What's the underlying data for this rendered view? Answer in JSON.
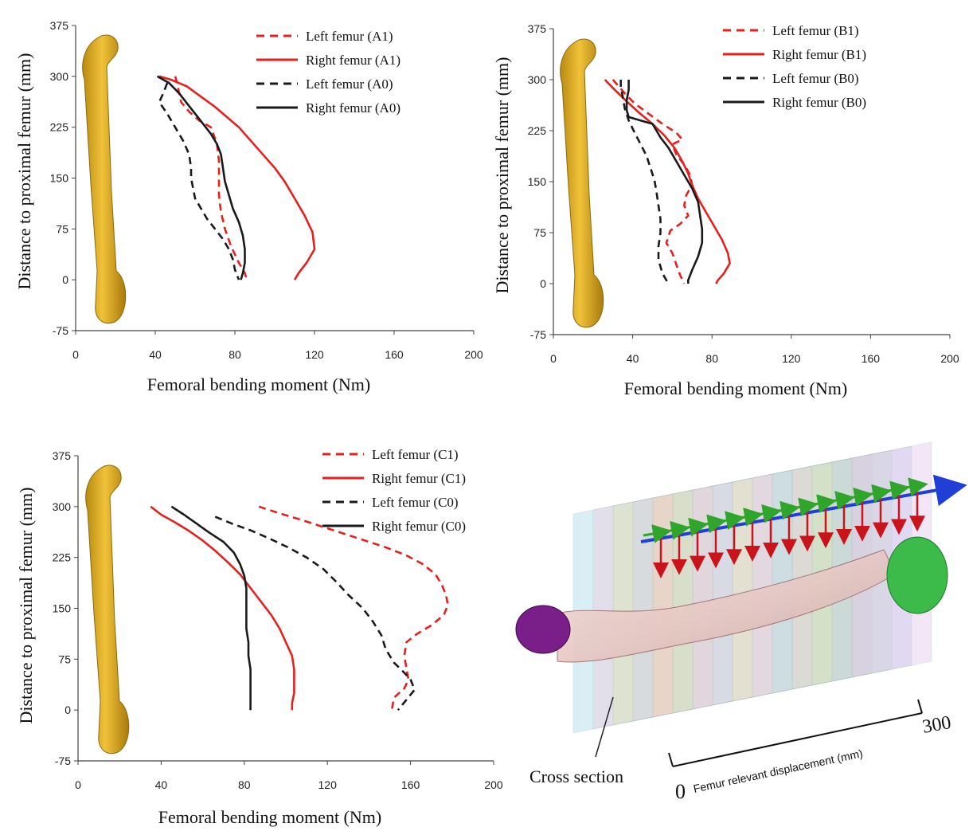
{
  "chart_data": [
    {
      "type": "line",
      "xlabel": "Femoral bending moment (Nm)",
      "ylabel": "Distance to proximal femur (mm)",
      "xlim": [
        0,
        200
      ],
      "ylim": [
        -75,
        375
      ],
      "xticks": [
        "0",
        "40",
        "80",
        "120",
        "160",
        "200"
      ],
      "yticks": [
        "-75",
        "0",
        "75",
        "150",
        "225",
        "300",
        "375"
      ],
      "legend_position": "top-right",
      "series": [
        {
          "name": "Left femur (A1)",
          "color": "#e8201c",
          "dash": true,
          "points": [
            [
              50,
              300
            ],
            [
              51,
              290
            ],
            [
              52,
              275
            ],
            [
              53,
              262
            ],
            [
              57,
              248
            ],
            [
              62,
              235
            ],
            [
              68,
              225
            ],
            [
              71,
              200
            ],
            [
              72,
              175
            ],
            [
              72,
              150
            ],
            [
              72,
              125
            ],
            [
              73,
              100
            ],
            [
              75,
              75
            ],
            [
              78,
              50
            ],
            [
              82,
              25
            ],
            [
              85,
              10
            ],
            [
              86,
              0
            ]
          ]
        },
        {
          "name": "Right femur (A1)",
          "color": "#e8201c",
          "dash": false,
          "points": [
            [
              42,
              300
            ],
            [
              48,
              295
            ],
            [
              56,
              285
            ],
            [
              63,
              270
            ],
            [
              70,
              255
            ],
            [
              76,
              240
            ],
            [
              82,
              225
            ],
            [
              88,
              205
            ],
            [
              94,
              185
            ],
            [
              100,
              165
            ],
            [
              105,
              145
            ],
            [
              110,
              120
            ],
            [
              115,
              95
            ],
            [
              119,
              70
            ],
            [
              120,
              45
            ],
            [
              116,
              25
            ],
            [
              112,
              10
            ],
            [
              110,
              0
            ]
          ]
        },
        {
          "name": "Left femur (A0)",
          "color": "#1a1a1a",
          "dash": true,
          "points": [
            [
              46,
              290
            ],
            [
              44,
              275
            ],
            [
              42,
              262
            ],
            [
              46,
              245
            ],
            [
              50,
              225
            ],
            [
              54,
              205
            ],
            [
              57,
              185
            ],
            [
              58,
              165
            ],
            [
              58,
              150
            ],
            [
              59,
              135
            ],
            [
              60,
              120
            ],
            [
              63,
              105
            ],
            [
              66,
              90
            ],
            [
              70,
              75
            ],
            [
              74,
              60
            ],
            [
              77,
              45
            ],
            [
              79,
              30
            ],
            [
              80,
              15
            ],
            [
              82,
              0
            ]
          ]
        },
        {
          "name": "Right femur (A0)",
          "color": "#1a1a1a",
          "dash": false,
          "points": [
            [
              41,
              300
            ],
            [
              47,
              290
            ],
            [
              52,
              275
            ],
            [
              56,
              260
            ],
            [
              60,
              245
            ],
            [
              64,
              230
            ],
            [
              68,
              215
            ],
            [
              71,
              200
            ],
            [
              73,
              185
            ],
            [
              74,
              165
            ],
            [
              75,
              145
            ],
            [
              77,
              125
            ],
            [
              79,
              105
            ],
            [
              82,
              85
            ],
            [
              84,
              65
            ],
            [
              85,
              45
            ],
            [
              85,
              25
            ],
            [
              84,
              10
            ],
            [
              83,
              0
            ]
          ]
        }
      ]
    },
    {
      "type": "line",
      "xlabel": "Femoral bending moment (Nm)",
      "ylabel": "Distance to proximal femur (mm)",
      "xlim": [
        0,
        200
      ],
      "ylim": [
        -75,
        375
      ],
      "xticks": [
        "0",
        "40",
        "80",
        "120",
        "160",
        "200"
      ],
      "yticks": [
        "-75",
        "0",
        "75",
        "150",
        "225",
        "300",
        "375"
      ],
      "legend_position": "top-right",
      "series": [
        {
          "name": "Left femur (B1)",
          "color": "#e8201c",
          "dash": true,
          "points": [
            [
              30,
              300
            ],
            [
              33,
              290
            ],
            [
              36,
              280
            ],
            [
              41,
              265
            ],
            [
              48,
              250
            ],
            [
              55,
              235
            ],
            [
              62,
              222
            ],
            [
              65,
              212
            ],
            [
              60,
              205
            ],
            [
              62,
              190
            ],
            [
              66,
              175
            ],
            [
              69,
              160
            ],
            [
              70,
              145
            ],
            [
              67,
              130
            ],
            [
              66,
              115
            ],
            [
              68,
              100
            ],
            [
              64,
              88
            ],
            [
              59,
              78
            ],
            [
              57,
              60
            ],
            [
              60,
              45
            ],
            [
              62,
              28
            ],
            [
              64,
              12
            ],
            [
              66,
              0
            ]
          ]
        },
        {
          "name": "Right femur (B1)",
          "color": "#e8201c",
          "dash": false,
          "points": [
            [
              26,
              300
            ],
            [
              31,
              285
            ],
            [
              37,
              268
            ],
            [
              43,
              252
            ],
            [
              50,
              235
            ],
            [
              56,
              218
            ],
            [
              61,
              200
            ],
            [
              65,
              180
            ],
            [
              68,
              162
            ],
            [
              70,
              145
            ],
            [
              73,
              125
            ],
            [
              77,
              105
            ],
            [
              81,
              85
            ],
            [
              85,
              65
            ],
            [
              88,
              45
            ],
            [
              89,
              30
            ],
            [
              86,
              15
            ],
            [
              83,
              5
            ],
            [
              82,
              0
            ]
          ]
        },
        {
          "name": "Left femur (B0)",
          "color": "#1a1a1a",
          "dash": true,
          "points": [
            [
              34,
              300
            ],
            [
              34,
              290
            ],
            [
              35,
              275
            ],
            [
              36,
              258
            ],
            [
              38,
              240
            ],
            [
              41,
              222
            ],
            [
              44,
              205
            ],
            [
              47,
              188
            ],
            [
              49,
              170
            ],
            [
              51,
              152
            ],
            [
              52,
              135
            ],
            [
              53,
              115
            ],
            [
              54,
              95
            ],
            [
              54,
              75
            ],
            [
              53,
              55
            ],
            [
              53,
              35
            ],
            [
              55,
              15
            ],
            [
              58,
              0
            ]
          ]
        },
        {
          "name": "Right femur (B0)",
          "color": "#1a1a1a",
          "dash": false,
          "points": [
            [
              38,
              300
            ],
            [
              38,
              285
            ],
            [
              37,
              270
            ],
            [
              37,
              255
            ],
            [
              38,
              245
            ],
            [
              44,
              240
            ],
            [
              50,
              235
            ],
            [
              52,
              225
            ],
            [
              54,
              215
            ],
            [
              58,
              200
            ],
            [
              62,
              180
            ],
            [
              66,
              160
            ],
            [
              70,
              140
            ],
            [
              73,
              120
            ],
            [
              74,
              100
            ],
            [
              75,
              80
            ],
            [
              75,
              60
            ],
            [
              73,
              40
            ],
            [
              70,
              20
            ],
            [
              68,
              5
            ],
            [
              68,
              0
            ]
          ]
        }
      ]
    },
    {
      "type": "line",
      "xlabel": "Femoral bending moment (Nm)",
      "ylabel": "Distance to proximal femur (mm)",
      "xlim": [
        0,
        200
      ],
      "ylim": [
        -75,
        375
      ],
      "xticks": [
        "0",
        "40",
        "80",
        "120",
        "160",
        "200"
      ],
      "yticks": [
        "-75",
        "0",
        "75",
        "150",
        "225",
        "300",
        "375"
      ],
      "legend_position": "top-right",
      "series": [
        {
          "name": "Left femur (C1)",
          "color": "#e8201c",
          "dash": true,
          "points": [
            [
              87,
              300
            ],
            [
              97,
              290
            ],
            [
              108,
              280
            ],
            [
              118,
              270
            ],
            [
              128,
              260
            ],
            [
              138,
              250
            ],
            [
              148,
              240
            ],
            [
              158,
              228
            ],
            [
              166,
              215
            ],
            [
              172,
              200
            ],
            [
              175,
              185
            ],
            [
              177,
              170
            ],
            [
              178,
              155
            ],
            [
              176,
              140
            ],
            [
              170,
              125
            ],
            [
              163,
              112
            ],
            [
              158,
              100
            ],
            [
              157,
              80
            ],
            [
              158,
              62
            ],
            [
              159,
              45
            ],
            [
              157,
              32
            ],
            [
              152,
              18
            ],
            [
              151,
              0
            ]
          ]
        },
        {
          "name": "Right femur (C1)",
          "color": "#e8201c",
          "dash": false,
          "points": [
            [
              35,
              300
            ],
            [
              40,
              288
            ],
            [
              46,
              278
            ],
            [
              53,
              265
            ],
            [
              60,
              250
            ],
            [
              66,
              235
            ],
            [
              72,
              218
            ],
            [
              78,
              200
            ],
            [
              83,
              180
            ],
            [
              88,
              160
            ],
            [
              93,
              140
            ],
            [
              97,
              120
            ],
            [
              100,
              100
            ],
            [
              103,
              80
            ],
            [
              104,
              60
            ],
            [
              104,
              40
            ],
            [
              104,
              25
            ],
            [
              103,
              10
            ],
            [
              103,
              0
            ]
          ]
        },
        {
          "name": "Left femur (C0)",
          "color": "#1a1a1a",
          "dash": true,
          "points": [
            [
              66,
              285
            ],
            [
              74,
              275
            ],
            [
              83,
              265
            ],
            [
              92,
              253
            ],
            [
              101,
              240
            ],
            [
              110,
              225
            ],
            [
              118,
              208
            ],
            [
              124,
              190
            ],
            [
              130,
              170
            ],
            [
              137,
              150
            ],
            [
              142,
              130
            ],
            [
              146,
              110
            ],
            [
              148,
              90
            ],
            [
              152,
              70
            ],
            [
              157,
              55
            ],
            [
              160,
              45
            ],
            [
              162,
              30
            ],
            [
              158,
              15
            ],
            [
              154,
              0
            ]
          ]
        },
        {
          "name": "Right femur (C0)",
          "color": "#1a1a1a",
          "dash": false,
          "points": [
            [
              45,
              300
            ],
            [
              51,
              288
            ],
            [
              57,
              275
            ],
            [
              63,
              262
            ],
            [
              70,
              248
            ],
            [
              75,
              232
            ],
            [
              78,
              215
            ],
            [
              80,
              198
            ],
            [
              81,
              180
            ],
            [
              81,
              160
            ],
            [
              81,
              140
            ],
            [
              81,
              120
            ],
            [
              82,
              100
            ],
            [
              82,
              80
            ],
            [
              83,
              60
            ],
            [
              83,
              40
            ],
            [
              83,
              20
            ],
            [
              83,
              0
            ]
          ]
        }
      ]
    }
  ],
  "illustration": {
    "cross_section_label": "Cross section",
    "axis_start": "0",
    "axis_end": "300",
    "axis_caption": "Femur relevant displacement (mm)"
  }
}
